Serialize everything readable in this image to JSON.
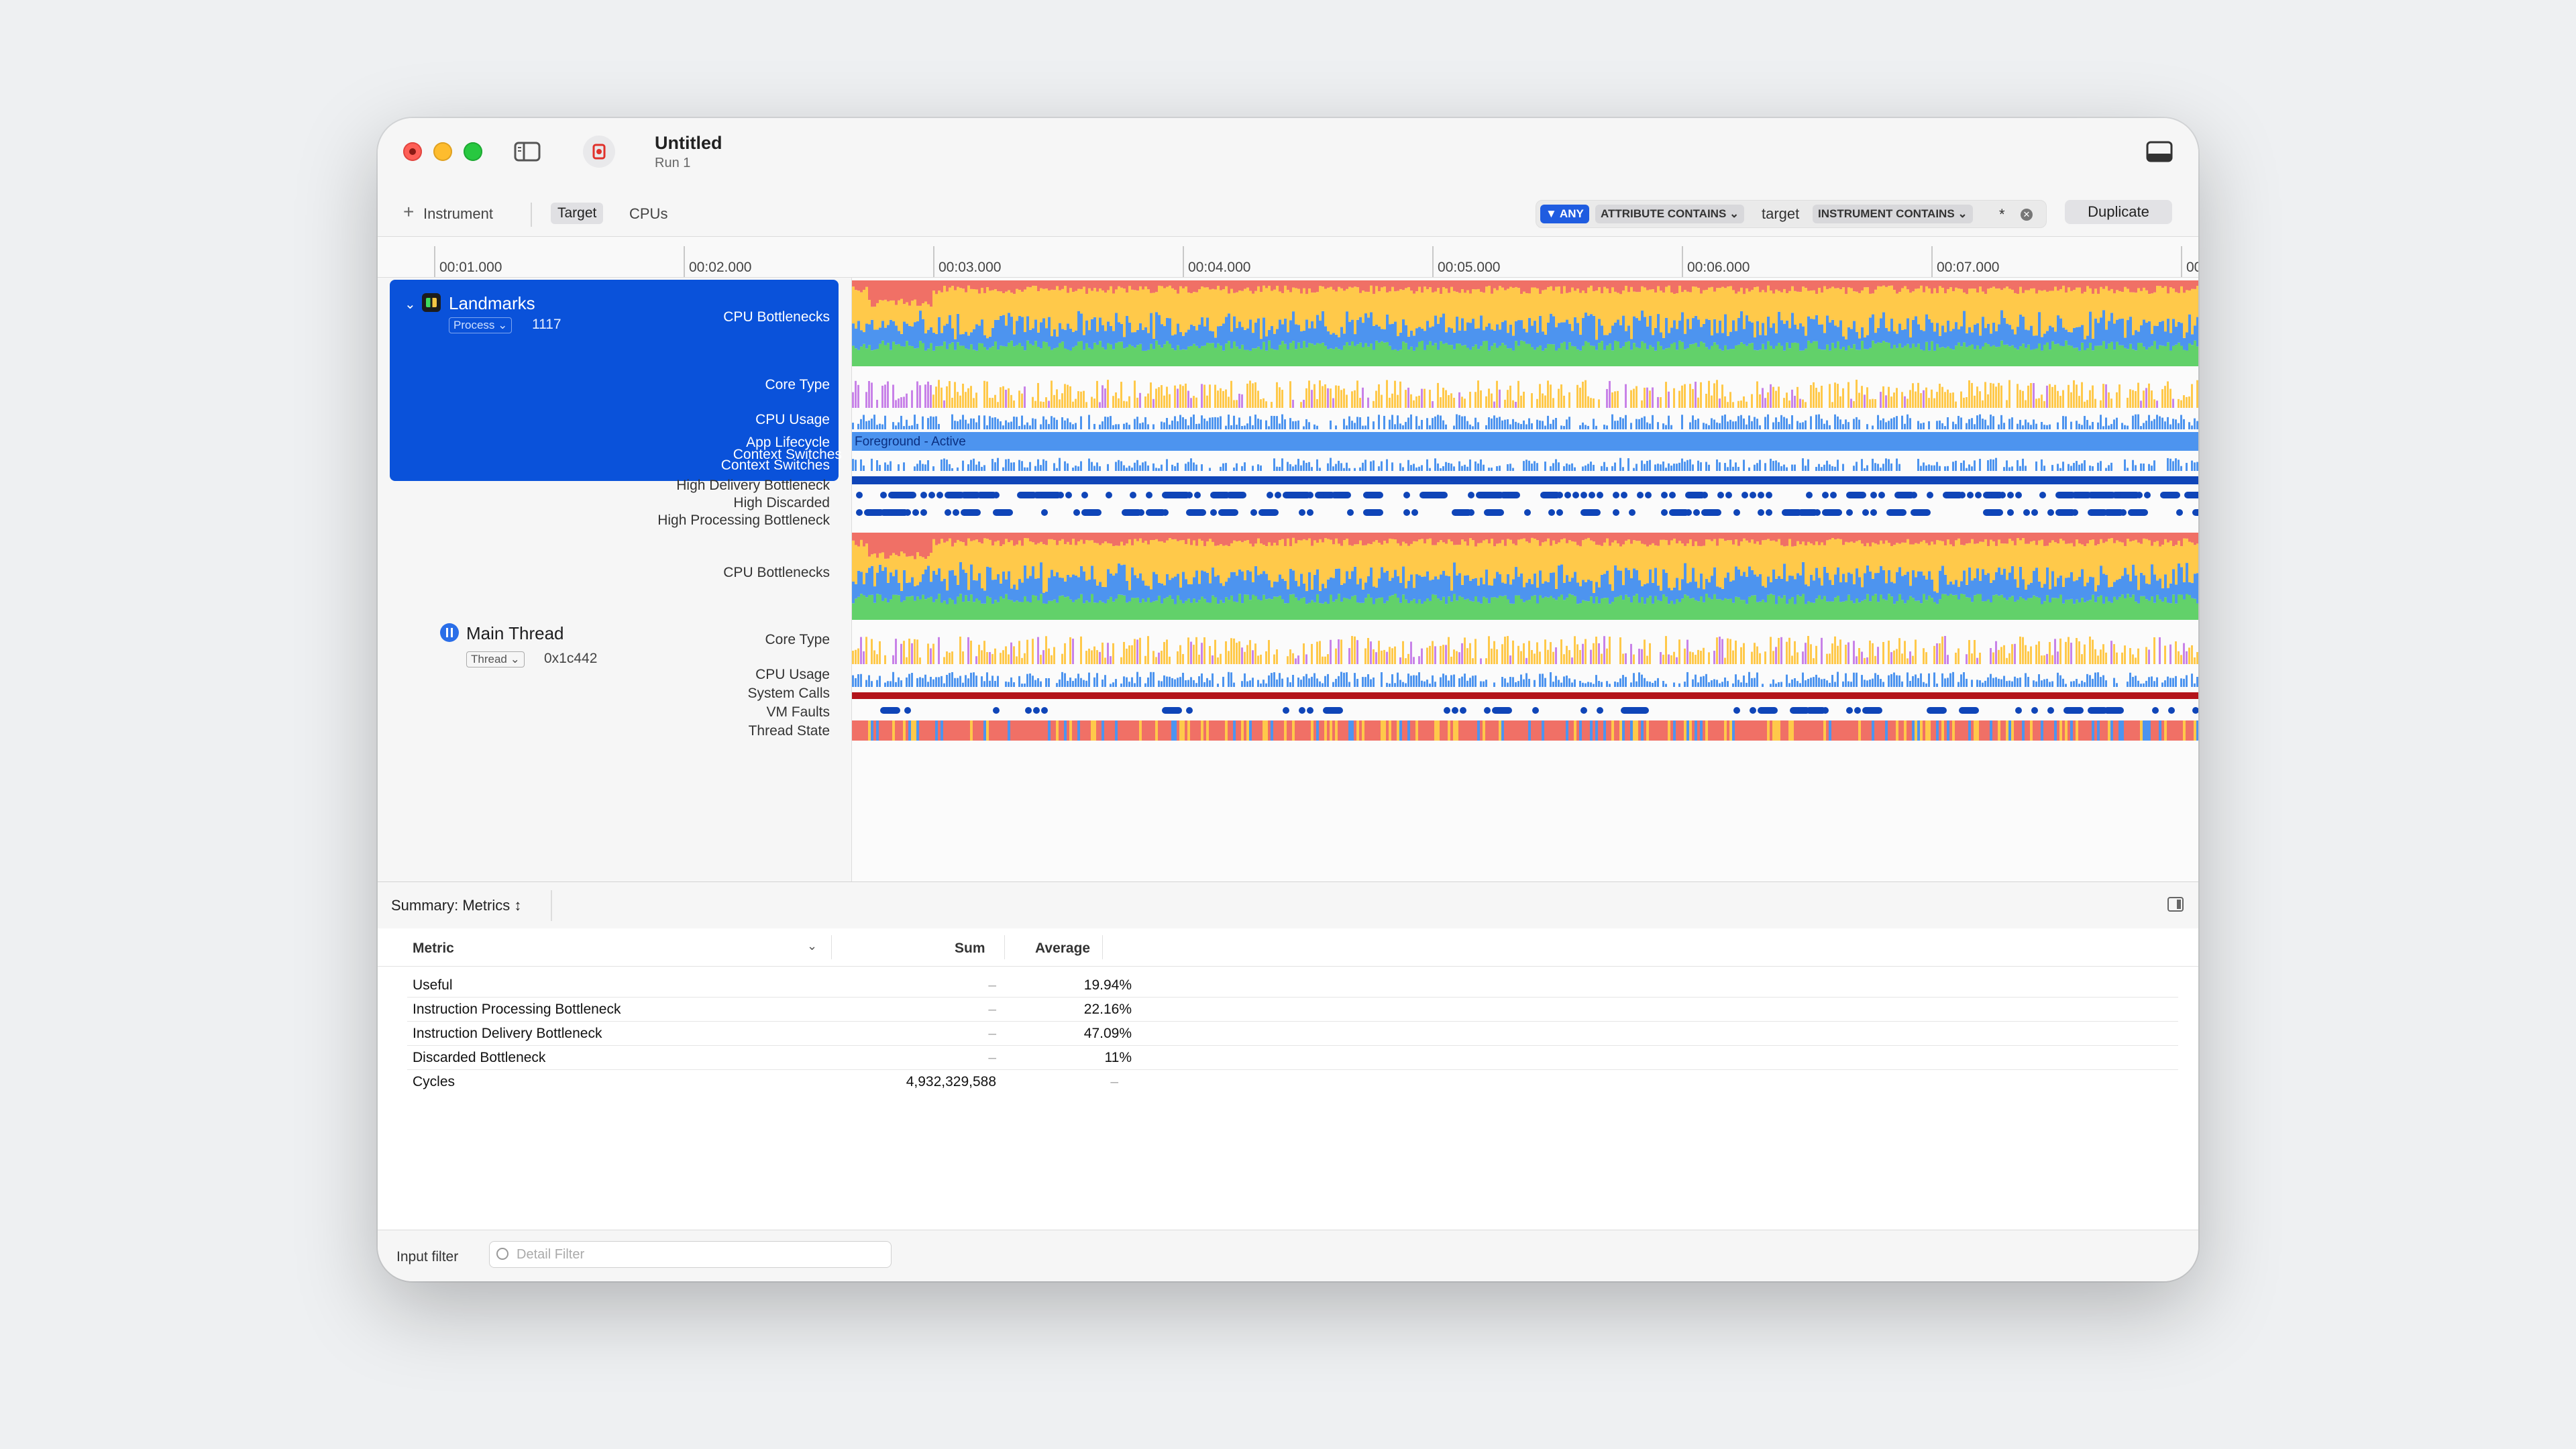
{
  "window": {
    "title": "Untitled",
    "subtitle": "Run 1"
  },
  "toolbar": {
    "add_instrument_icon": "plus-icon",
    "add_instrument_label": "Instrument",
    "target_label": "Target",
    "cpus_label": "CPUs",
    "filter": {
      "any_label": "ANY",
      "attribute_label": "ATTRIBUTE CONTAINS",
      "attribute_value": "target",
      "instrument_label": "INSTRUMENT CONTAINS",
      "instrument_value": "*"
    },
    "duplicate_label": "Duplicate"
  },
  "ruler": {
    "ticks": [
      "00:01.000",
      "00:02.000",
      "00:03.000",
      "00:04.000",
      "00:05.000",
      "00:06.000",
      "00:07.000",
      "00"
    ]
  },
  "process": {
    "name": "Landmarks",
    "kind": "Process",
    "pid": "1117",
    "rows": [
      "CPU Bottlenecks",
      "Core Type",
      "CPU Usage",
      "App Lifecycle",
      "Context Switches",
      "High Delivery Bottleneck",
      "High Discarded",
      "High Processing Bottleneck"
    ],
    "lifecycle_text": "Foreground - Active"
  },
  "thread": {
    "name": "Main Thread",
    "kind": "Thread",
    "id": "0x1c442",
    "rows": [
      "CPU Bottlenecks",
      "Core Type",
      "CPU Usage",
      "System Calls",
      "VM Faults",
      "Thread State"
    ]
  },
  "summary": {
    "title": "Summary: Metrics",
    "columns": {
      "metric": "Metric",
      "sum": "Sum",
      "average": "Average"
    },
    "rows": [
      {
        "metric": "Useful",
        "sum": "–",
        "average": "19.94%"
      },
      {
        "metric": "Instruction Processing Bottleneck",
        "sum": "–",
        "average": "22.16%"
      },
      {
        "metric": "Instruction Delivery Bottleneck",
        "sum": "–",
        "average": "47.09%"
      },
      {
        "metric": "Discarded Bottleneck",
        "sum": "–",
        "average": "11%"
      },
      {
        "metric": "Cycles",
        "sum": "4,932,329,588",
        "average": "–"
      }
    ]
  },
  "footer": {
    "label": "Input filter",
    "placeholder": "Detail Filter"
  },
  "colors": {
    "selection": "#0a52da",
    "useful": "#62d16a",
    "delivery": "#ffc94a",
    "processing": "#4d94ef",
    "discarded": "#f07066",
    "core_e": "#c882e8",
    "dot": "#0f45b8",
    "syscall": "#b3131a"
  }
}
